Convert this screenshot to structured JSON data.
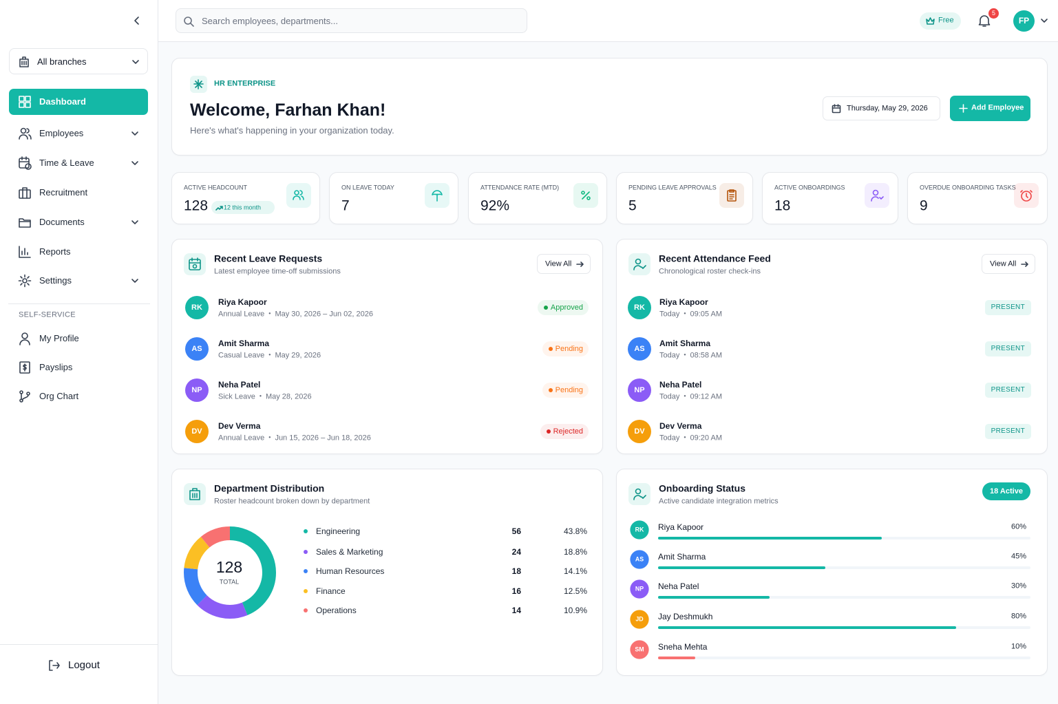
{
  "sidebar": {
    "branch": "All branches",
    "nav": [
      "Dashboard",
      "Employees",
      "Time & Leave",
      "Recruitment",
      "Documents",
      "Reports",
      "Settings"
    ],
    "section_label": "SELF-SERVICE",
    "self_service": [
      "My Profile",
      "Payslips",
      "Org Chart"
    ],
    "logout": "Logout"
  },
  "topbar": {
    "search_placeholder": "Search employees, departments...",
    "plan": "Free",
    "notification_count": "5",
    "user_initials": "FP"
  },
  "header": {
    "eyebrow": "HR ENTERPRISE",
    "title": "Welcome, Farhan Khan!",
    "subtitle": "Here's what's happening in your organization today.",
    "date": "Thursday, May 29, 2026",
    "add_button": "Add Employee"
  },
  "stats": [
    {
      "label": "ACTIVE HEADCOUNT",
      "value": "128",
      "trend": "12 this month",
      "color": "#14b8a6"
    },
    {
      "label": "ON LEAVE TODAY",
      "value": "7",
      "color": "#14b8a6"
    },
    {
      "label": "ATTENDANCE RATE (MTD)",
      "value": "92%",
      "color": "#10b981"
    },
    {
      "label": "PENDING LEAVE APPROVALS",
      "value": "5",
      "color": "#b45309"
    },
    {
      "label": "ACTIVE ONBOARDINGS",
      "value": "18",
      "color": "#8b5cf6"
    },
    {
      "label": "OVERDUE ONBOARDING TASKS",
      "value": "9",
      "color": "#ef4444"
    }
  ],
  "leave_requests": {
    "title": "Recent Leave Requests",
    "subtitle": "Latest employee time-off submissions",
    "action": "View All",
    "items": [
      {
        "initials": "RK",
        "color": "#14b8a6",
        "name": "Riya Kapoor",
        "type": "Annual Leave",
        "dates": "May 30, 2026 – Jun 02, 2026",
        "status": "Approved",
        "status_color": "#16a34a"
      },
      {
        "initials": "AS",
        "color": "#3b82f6",
        "name": "Amit Sharma",
        "type": "Casual Leave",
        "dates": "May 29, 2026",
        "status": "Pending",
        "status_color": "#f97316"
      },
      {
        "initials": "NP",
        "color": "#8b5cf6",
        "name": "Neha Patel",
        "type": "Sick Leave",
        "dates": "May 28, 2026",
        "status": "Pending",
        "status_color": "#f97316"
      },
      {
        "initials": "DV",
        "color": "#f59e0b",
        "name": "Dev Verma",
        "type": "Annual Leave",
        "dates": "Jun 15, 2026 – Jun 18, 2026",
        "status": "Rejected",
        "status_color": "#dc2626"
      }
    ]
  },
  "attendance": {
    "title": "Recent Attendance Feed",
    "subtitle": "Chronological roster check-ins",
    "action": "View All",
    "items": [
      {
        "initials": "RK",
        "color": "#14b8a6",
        "name": "Riya Kapoor",
        "day": "Today",
        "time": "09:05 AM",
        "status": "PRESENT"
      },
      {
        "initials": "AS",
        "color": "#3b82f6",
        "name": "Amit Sharma",
        "day": "Today",
        "time": "08:58 AM",
        "status": "PRESENT"
      },
      {
        "initials": "NP",
        "color": "#8b5cf6",
        "name": "Neha Patel",
        "day": "Today",
        "time": "09:12 AM",
        "status": "PRESENT"
      },
      {
        "initials": "DV",
        "color": "#f59e0b",
        "name": "Dev Verma",
        "day": "Today",
        "time": "09:20 AM",
        "status": "PRESENT"
      }
    ]
  },
  "department_distribution": {
    "title": "Department Distribution",
    "subtitle": "Roster headcount broken down by department",
    "total": "128",
    "total_label": "TOTAL",
    "categories": [
      "Engineering",
      "Sales & Marketing",
      "Human Resources",
      "Finance",
      "Operations"
    ],
    "values": [
      56,
      24,
      18,
      16,
      14
    ],
    "shares": [
      "43.8%",
      "18.8%",
      "14.1%",
      "12.5%",
      "10.9%"
    ],
    "colors": [
      "#14b8a6",
      "#8b5cf6",
      "#3b82f6",
      "#fbbf24",
      "#f87171"
    ]
  },
  "onboarding": {
    "title": "Onboarding Status",
    "subtitle": "Active candidate integration metrics",
    "badge": "18 Active",
    "items": [
      {
        "initials": "RK",
        "color": "#14b8a6",
        "name": "Riya Kapoor",
        "progress": 60,
        "progress_label": "60%",
        "bar_color": "#14b8a6"
      },
      {
        "initials": "AS",
        "color": "#3b82f6",
        "name": "Amit Sharma",
        "progress": 45,
        "progress_label": "45%",
        "bar_color": "#14b8a6"
      },
      {
        "initials": "NP",
        "color": "#8b5cf6",
        "name": "Neha Patel",
        "progress": 30,
        "progress_label": "30%",
        "bar_color": "#14b8a6"
      },
      {
        "initials": "JD",
        "color": "#f59e0b",
        "name": "Jay Deshmukh",
        "progress": 80,
        "progress_label": "80%",
        "bar_color": "#14b8a6"
      },
      {
        "initials": "SM",
        "color": "#f87171",
        "name": "Sneha Mehta",
        "progress": 10,
        "progress_label": "10%",
        "bar_color": "#f87171"
      }
    ]
  }
}
